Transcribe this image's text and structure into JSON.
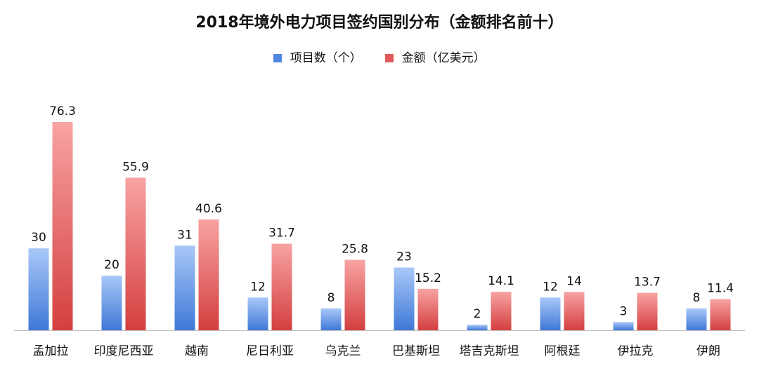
{
  "chart_data": {
    "type": "bar",
    "title": "2018年境外电力项目签约国别分布（金额排名前十）",
    "categories": [
      "孟加拉",
      "印度尼西亚",
      "越南",
      "尼日利亚",
      "乌克兰",
      "巴基斯坦",
      "塔吉克斯坦",
      "阿根廷",
      "伊拉克",
      "伊朗"
    ],
    "series": [
      {
        "name": "项目数（个）",
        "values": [
          30,
          20,
          31,
          12,
          8,
          23,
          2,
          12,
          3,
          8
        ],
        "color": "#4f86df"
      },
      {
        "name": "金额（亿美元）",
        "values": [
          76.3,
          55.9,
          40.6,
          31.7,
          25.8,
          15.2,
          14.1,
          14,
          13.7,
          11.4
        ],
        "color": "#e05a5a"
      }
    ],
    "xlabel": "",
    "ylabel": "",
    "ylim": [
      0,
      76.3
    ],
    "grid": false,
    "legend_position": "top-center",
    "data_labels": true
  }
}
